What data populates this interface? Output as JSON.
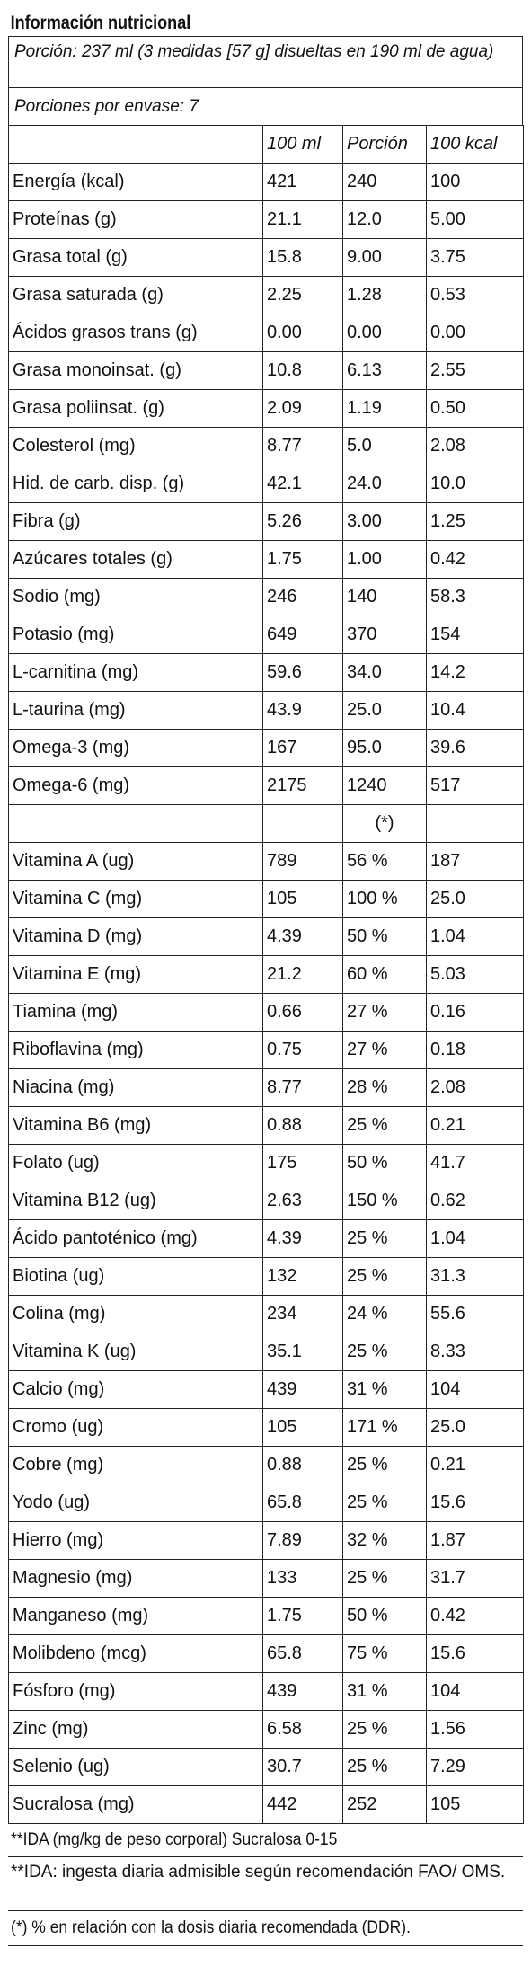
{
  "title": "Información nutricional",
  "serving": "Porción:  237 ml (3 medidas [57 g] disueltas en 190 ml de agua)",
  "servings_per_container": "Porciones por envase: 7",
  "columns": [
    "",
    "100 ml",
    "Porción",
    "100 kcal"
  ],
  "rows": [
    {
      "label": "Energía (kcal)",
      "per100ml": "421",
      "portion": "240",
      "per100kcal": "100"
    },
    {
      "label": "Proteínas (g)",
      "per100ml": "21.1",
      "portion": "12.0",
      "per100kcal": "5.00"
    },
    {
      "label": "Grasa total (g)",
      "per100ml": "15.8",
      "portion": "9.00",
      "per100kcal": "3.75"
    },
    {
      "label": "Grasa saturada (g)",
      "per100ml": "2.25",
      "portion": "1.28",
      "per100kcal": "0.53"
    },
    {
      "label": "Ácidos grasos trans (g)",
      "per100ml": "0.00",
      "portion": "0.00",
      "per100kcal": "0.00"
    },
    {
      "label": "Grasa monoinsat. (g)",
      "per100ml": "10.8",
      "portion": "6.13",
      "per100kcal": "2.55"
    },
    {
      "label": "Grasa poliinsat. (g)",
      "per100ml": "2.09",
      "portion": "1.19",
      "per100kcal": "0.50"
    },
    {
      "label": "Colesterol (mg)",
      "per100ml": "8.77",
      "portion": "5.0",
      "per100kcal": "2.08"
    },
    {
      "label": "Hid. de carb. disp. (g)",
      "per100ml": "42.1",
      "portion": "24.0",
      "per100kcal": "10.0"
    },
    {
      "label": "Fibra (g)",
      "per100ml": "5.26",
      "portion": "3.00",
      "per100kcal": "1.25"
    },
    {
      "label": "Azúcares totales (g)",
      "per100ml": "1.75",
      "portion": "1.00",
      "per100kcal": "0.42"
    },
    {
      "label": "Sodio (mg)",
      "per100ml": "246",
      "portion": "140",
      "per100kcal": "58.3"
    },
    {
      "label": "Potasio (mg)",
      "per100ml": "649",
      "portion": "370",
      "per100kcal": "154"
    },
    {
      "label": "L-carnitina (mg)",
      "per100ml": "59.6",
      "portion": "34.0",
      "per100kcal": "14.2"
    },
    {
      "label": "L-taurina  (mg)",
      "per100ml": "43.9",
      "portion": "25.0",
      "per100kcal": "10.4"
    },
    {
      "label": "Omega-3 (mg)",
      "per100ml": "167",
      "portion": "95.0",
      "per100kcal": "39.6"
    },
    {
      "label": "Omega-6 (mg)",
      "per100ml": "2175",
      "portion": "1240",
      "per100kcal": "517"
    }
  ],
  "vitamin_header_mark": "(*)",
  "vitamin_rows": [
    {
      "label": "Vitamina A (ug)",
      "per100ml": "789",
      "portion": "56 %",
      "per100kcal": "187"
    },
    {
      "label": "Vitamina C (mg)",
      "per100ml": "105",
      "portion": "100 %",
      "per100kcal": "25.0"
    },
    {
      "label": "Vitamina D (mg)",
      "per100ml": "4.39",
      "portion": "50 %",
      "per100kcal": "1.04"
    },
    {
      "label": "Vitamina E (mg)",
      "per100ml": "21.2",
      "portion": "60 %",
      "per100kcal": "5.03"
    },
    {
      "label": "Tiamina (mg)",
      "per100ml": "0.66",
      "portion": "27 %",
      "per100kcal": "0.16"
    },
    {
      "label": "Riboflavina (mg)",
      "per100ml": "0.75",
      "portion": "27 %",
      "per100kcal": "0.18"
    },
    {
      "label": "Niacina (mg)",
      "per100ml": "8.77",
      "portion": "28 %",
      "per100kcal": "2.08"
    },
    {
      "label": "Vitamina B6 (mg)",
      "per100ml": "0.88",
      "portion": "25 %",
      "per100kcal": "0.21"
    },
    {
      "label": "Folato (ug)",
      "per100ml": "175",
      "portion": "50 %",
      "per100kcal": "41.7"
    },
    {
      "label": "Vitamina B12 (ug)",
      "per100ml": "2.63",
      "portion": "150 %",
      "per100kcal": "0.62"
    },
    {
      "label": "Ácido pantoténico (mg)",
      "per100ml": "4.39",
      "portion": "25 %",
      "per100kcal": "1.04"
    },
    {
      "label": "Biotina (ug)",
      "per100ml": "132",
      "portion": "25 %",
      "per100kcal": "31.3"
    },
    {
      "label": "Colina (mg)",
      "per100ml": "234",
      "portion": "24 %",
      "per100kcal": "55.6"
    },
    {
      "label": "Vitamina K (ug)",
      "per100ml": "35.1",
      "portion": "25 %",
      "per100kcal": "8.33"
    },
    {
      "label": "Calcio (mg)",
      "per100ml": "439",
      "portion": "31 %",
      "per100kcal": "104"
    },
    {
      "label": "Cromo (ug)",
      "per100ml": "105",
      "portion": "171 %",
      "per100kcal": "25.0"
    },
    {
      "label": "Cobre (mg)",
      "per100ml": "0.88",
      "portion": "25 %",
      "per100kcal": "0.21"
    },
    {
      "label": "Yodo (ug)",
      "per100ml": "65.8",
      "portion": "25 %",
      "per100kcal": "15.6"
    },
    {
      "label": "Hierro (mg)",
      "per100ml": "7.89",
      "portion": "32 %",
      "per100kcal": "1.87"
    },
    {
      "label": "Magnesio (mg)",
      "per100ml": "133",
      "portion": "25 %",
      "per100kcal": "31.7"
    },
    {
      "label": "Manganeso (mg)",
      "per100ml": "1.75",
      "portion": "50 %",
      "per100kcal": "0.42"
    },
    {
      "label": "Molibdeno (mcg)",
      "per100ml": "65.8",
      "portion": "75 %",
      "per100kcal": "15.6"
    },
    {
      "label": "Fósforo (mg)",
      "per100ml": "439",
      "portion": "31 %",
      "per100kcal": "104"
    },
    {
      "label": "Zinc  (mg)",
      "per100ml": "6.58",
      "portion": "25 %",
      "per100kcal": "1.56"
    },
    {
      "label": "Selenio (ug)",
      "per100ml": "30.7",
      "portion": "25 %",
      "per100kcal": "7.29"
    },
    {
      "label": "Sucralosa (mg)",
      "per100ml": "442",
      "portion": "252",
      "per100kcal": "105"
    }
  ],
  "notes": [
    "**IDA (mg/kg de peso corporal) Sucralosa 0-15",
    "**IDA: ingesta diaria admisible según recomendación FAO/ OMS.",
    "(*) % en relación con la dosis diaria recomendada (DDR)."
  ]
}
